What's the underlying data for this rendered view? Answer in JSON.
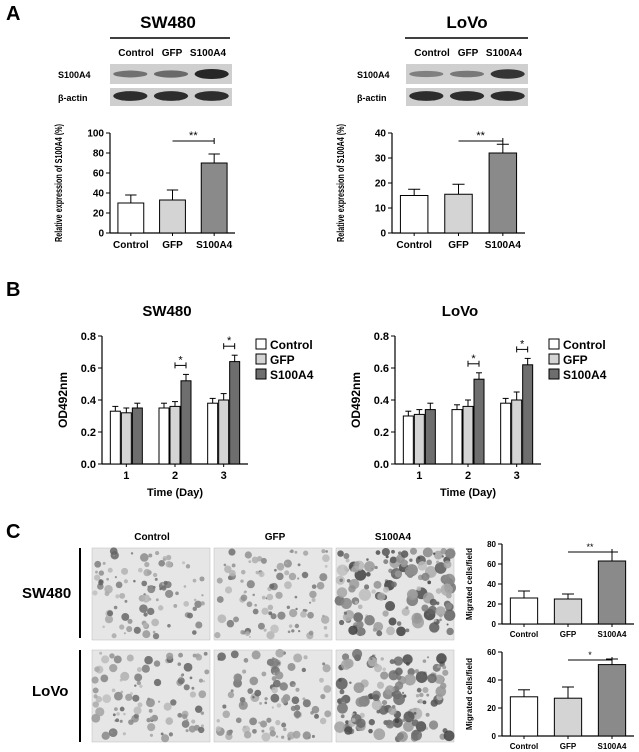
{
  "panels": {
    "a_letter": "A",
    "b_letter": "B",
    "c_letter": "C"
  },
  "western": [
    {
      "title": "SW480",
      "lanes": [
        "Control",
        "GFP",
        "S100A4"
      ],
      "rows": [
        "S100A4",
        "β-actin"
      ],
      "band_intensity": {
        "S100A4": [
          0.45,
          0.5,
          0.95
        ],
        "β-actin": [
          0.9,
          0.9,
          0.9
        ]
      }
    },
    {
      "title": "LoVo",
      "lanes": [
        "Control",
        "GFP",
        "S100A4"
      ],
      "rows": [
        "S100A4",
        "β-actin"
      ],
      "band_intensity": {
        "S100A4": [
          0.35,
          0.4,
          0.85
        ],
        "β-actin": [
          0.9,
          0.9,
          0.9
        ]
      }
    }
  ],
  "chart_data": [
    {
      "id": "a1",
      "type": "bar",
      "ylabel": "Relative expression of S100A4 (%)",
      "categories": [
        "Control",
        "GFP",
        "S100A4"
      ],
      "values": [
        30,
        33,
        70
      ],
      "errors": [
        8,
        10,
        9
      ],
      "ylim": [
        0,
        100
      ],
      "yticks": [
        0,
        20,
        40,
        60,
        80,
        100
      ],
      "colors": [
        "#ffffff",
        "#d4d4d4",
        "#8a8a8a"
      ],
      "significance": [
        {
          "from": 1,
          "to": 2,
          "label": "**"
        }
      ]
    },
    {
      "id": "a2",
      "type": "bar",
      "ylabel": "Relative expression of S100A4 (%)",
      "categories": [
        "Control",
        "GFP",
        "S100A4"
      ],
      "values": [
        15,
        15.5,
        32
      ],
      "errors": [
        2.5,
        4,
        3.5
      ],
      "ylim": [
        0,
        40
      ],
      "yticks": [
        0,
        10,
        20,
        30,
        40
      ],
      "colors": [
        "#ffffff",
        "#d4d4d4",
        "#8a8a8a"
      ],
      "significance": [
        {
          "from": 1,
          "to": 2,
          "label": "**"
        }
      ]
    },
    {
      "id": "b1",
      "type": "bar",
      "title": "SW480",
      "xlabel": "Time (Day)",
      "ylabel": "OD492nm",
      "categories": [
        "1",
        "2",
        "3"
      ],
      "series": [
        {
          "name": "Control",
          "values": [
            0.33,
            0.35,
            0.38
          ],
          "errors": [
            0.03,
            0.03,
            0.03
          ],
          "color": "#ffffff"
        },
        {
          "name": "GFP",
          "values": [
            0.32,
            0.36,
            0.4
          ],
          "errors": [
            0.03,
            0.03,
            0.04
          ],
          "color": "#d4d4d4"
        },
        {
          "name": "S100A4",
          "values": [
            0.35,
            0.52,
            0.64
          ],
          "errors": [
            0.03,
            0.04,
            0.04
          ],
          "color": "#6e6e6e"
        }
      ],
      "ylim": [
        0,
        0.8
      ],
      "yticks": [
        0.0,
        0.2,
        0.4,
        0.6,
        0.8
      ],
      "legend": "right",
      "significance": [
        {
          "group": 1,
          "label": "*"
        },
        {
          "group": 2,
          "label": "*"
        }
      ]
    },
    {
      "id": "b2",
      "type": "bar",
      "title": "LoVo",
      "xlabel": "Time (Day)",
      "ylabel": "OD492nm",
      "categories": [
        "1",
        "2",
        "3"
      ],
      "series": [
        {
          "name": "Control",
          "values": [
            0.3,
            0.34,
            0.38
          ],
          "errors": [
            0.03,
            0.03,
            0.03
          ],
          "color": "#ffffff"
        },
        {
          "name": "GFP",
          "values": [
            0.31,
            0.36,
            0.4
          ],
          "errors": [
            0.03,
            0.04,
            0.05
          ],
          "color": "#d4d4d4"
        },
        {
          "name": "S100A4",
          "values": [
            0.34,
            0.53,
            0.62
          ],
          "errors": [
            0.04,
            0.04,
            0.04
          ],
          "color": "#6e6e6e"
        }
      ],
      "ylim": [
        0,
        0.8
      ],
      "yticks": [
        0.0,
        0.2,
        0.4,
        0.6,
        0.8
      ],
      "legend": "right",
      "significance": [
        {
          "group": 1,
          "label": "*"
        },
        {
          "group": 2,
          "label": "*"
        }
      ]
    },
    {
      "id": "c1",
      "type": "bar",
      "ylabel": "Migrated cells/field",
      "categories": [
        "Control",
        "GFP",
        "S100A4"
      ],
      "values": [
        26,
        25,
        63
      ],
      "errors": [
        7,
        5,
        9
      ],
      "ylim": [
        0,
        80
      ],
      "yticks": [
        0,
        20,
        40,
        60,
        80
      ],
      "colors": [
        "#ffffff",
        "#d4d4d4",
        "#8a8a8a"
      ],
      "significance": [
        {
          "from": 1,
          "to": 2,
          "label": "**"
        }
      ]
    },
    {
      "id": "c2",
      "type": "bar",
      "ylabel": "Migrated cells/field",
      "categories": [
        "Control",
        "GFP",
        "S100A4"
      ],
      "values": [
        28,
        27,
        51
      ],
      "errors": [
        5,
        8,
        4
      ],
      "ylim": [
        0,
        60
      ],
      "yticks": [
        0,
        20,
        40,
        60
      ],
      "colors": [
        "#ffffff",
        "#d4d4d4",
        "#8a8a8a"
      ],
      "significance": [
        {
          "from": 1,
          "to": 2,
          "label": "*"
        }
      ]
    }
  ],
  "migration": {
    "columns": [
      "Control",
      "GFP",
      "S100A4"
    ],
    "rows": [
      "SW480",
      "LoVo"
    ],
    "density": [
      [
        0.35,
        0.35,
        0.8
      ],
      [
        0.4,
        0.4,
        0.75
      ]
    ]
  }
}
